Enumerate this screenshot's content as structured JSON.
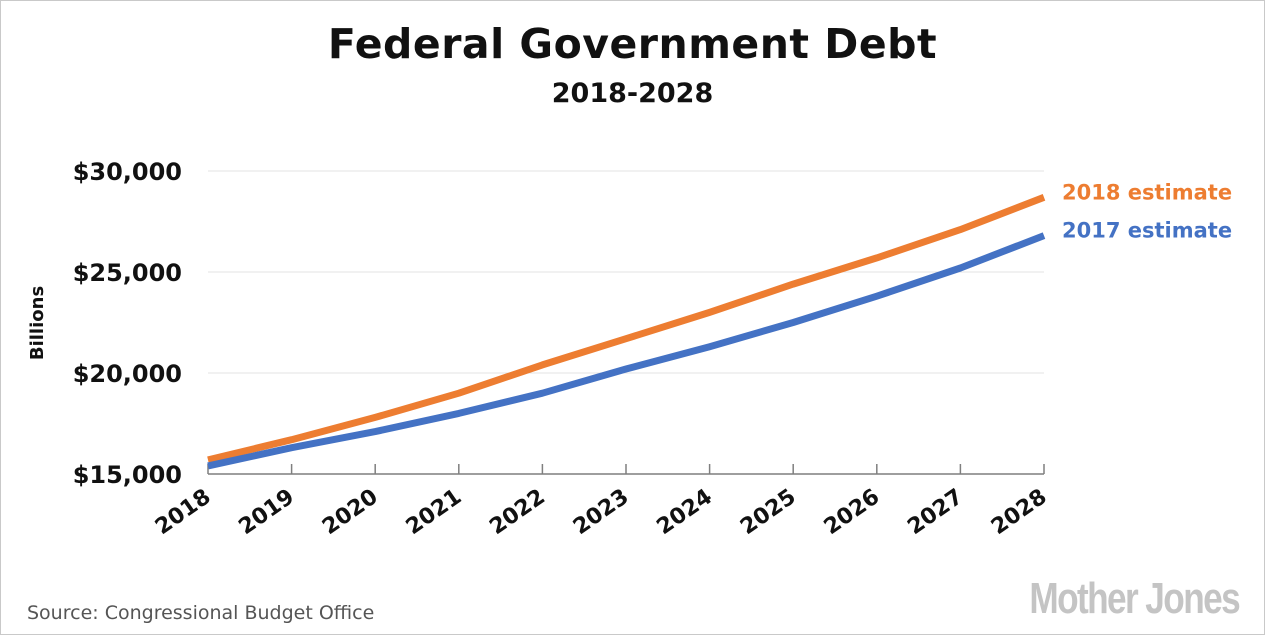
{
  "chart_data": {
    "type": "line",
    "title": "Federal Government Debt",
    "subtitle": "2018-2028",
    "ylabel": "Billions",
    "xlabel": "",
    "x": [
      "2018",
      "2019",
      "2020",
      "2021",
      "2022",
      "2023",
      "2024",
      "2025",
      "2026",
      "2027",
      "2028"
    ],
    "ylim": [
      15000,
      30000
    ],
    "yticks": [
      15000,
      20000,
      25000,
      30000
    ],
    "ytick_labels": [
      "$15,000",
      "$20,000",
      "$25,000",
      "$30,000"
    ],
    "grid": "horizontal",
    "legend": "right-end labels",
    "series": [
      {
        "name": "2018 estimate",
        "color": "#ed7d31",
        "values": [
          15700,
          16700,
          17800,
          19000,
          20400,
          21700,
          23000,
          24400,
          25700,
          27100,
          28700
        ]
      },
      {
        "name": "2017 estimate",
        "color": "#4472c4",
        "values": [
          15400,
          16300,
          17100,
          18000,
          19000,
          20200,
          21300,
          22500,
          23800,
          25200,
          26800
        ]
      }
    ]
  },
  "source": "Source: Congressional Budget Office",
  "logo_text": "Mother Jones"
}
